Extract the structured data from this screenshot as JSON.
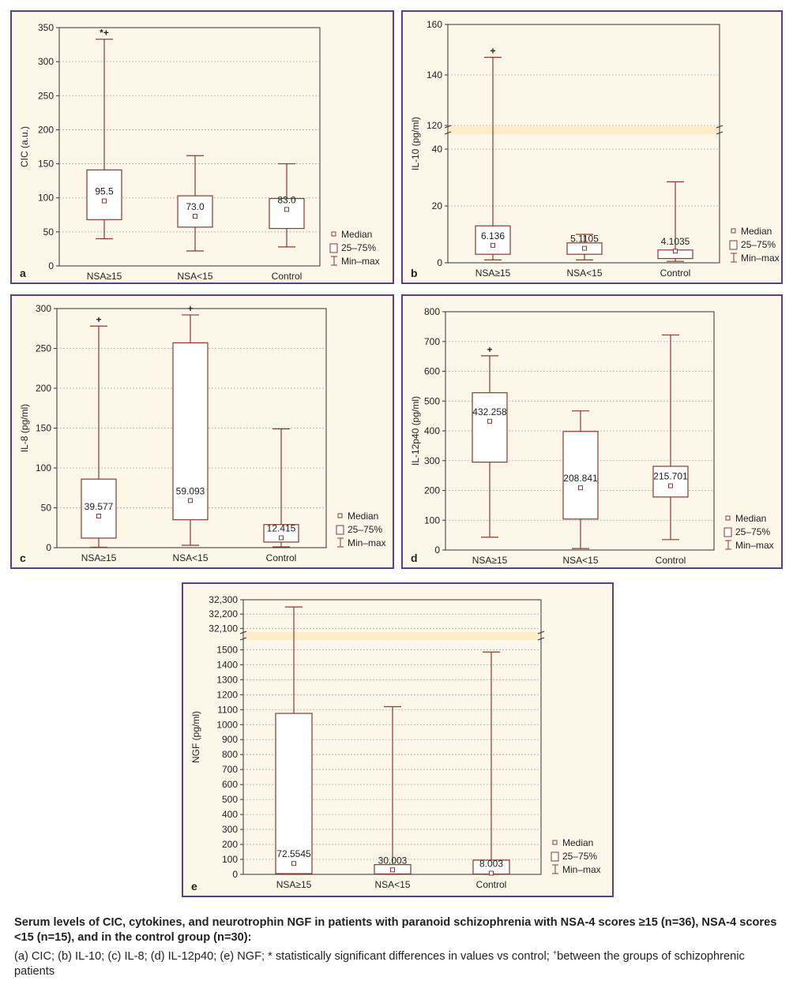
{
  "colors": {
    "frame": "#5b3f8c",
    "panel_bg": "#fdf7ea",
    "box": "#8b3a2c",
    "grid": "#a8a8a8"
  },
  "legend": {
    "median": "Median",
    "iqr": "25–75%",
    "range": "Min–max"
  },
  "chart_data": [
    {
      "id": "a",
      "type": "box",
      "panel_label": "a",
      "ylabel": "CIC (a.u.)",
      "categories": [
        "NSA≥15",
        "NSA<15",
        "Control"
      ],
      "yticks": [
        0,
        50,
        100,
        150,
        200,
        250,
        300,
        350
      ],
      "ylim": [
        0,
        350
      ],
      "grid": true,
      "boxes": [
        {
          "min": 40,
          "q1": 68,
          "median": 95.5,
          "q3": 141,
          "max": 333,
          "label": "95.5",
          "mark": "*+"
        },
        {
          "min": 22,
          "q1": 57,
          "median": 73.0,
          "q3": 103,
          "max": 162,
          "label": "73.0"
        },
        {
          "min": 28,
          "q1": 55,
          "median": 83.0,
          "q3": 99,
          "max": 150,
          "label": "83.0"
        }
      ]
    },
    {
      "id": "b",
      "type": "box",
      "panel_label": "b",
      "ylabel": "IL-10 (pg/ml)",
      "categories": [
        "NSA≥15",
        "NSA<15",
        "Control"
      ],
      "ylim": [
        0,
        160
      ],
      "grid": true,
      "axis_break": {
        "lower": [
          0,
          45
        ],
        "upper": [
          120,
          160
        ]
      },
      "yticks": [
        0,
        20,
        40,
        120,
        140,
        160
      ],
      "boxes": [
        {
          "min": 1,
          "q1": 3,
          "median": 6.136,
          "q3": 13,
          "max": 147,
          "label": "6.136",
          "mark": "+"
        },
        {
          "min": 1,
          "q1": 3,
          "median": 5.1105,
          "q3": 7,
          "max": 10,
          "label": "5.1105"
        },
        {
          "min": 0.5,
          "q1": 1.5,
          "median": 4.1035,
          "q3": 4.5,
          "max": 28.5,
          "label": "4.1035"
        }
      ]
    },
    {
      "id": "c",
      "type": "box",
      "panel_label": "c",
      "ylabel": "IL-8 (pg/ml)",
      "categories": [
        "NSA≥15",
        "NSA<15",
        "Control"
      ],
      "yticks": [
        0,
        50,
        100,
        150,
        200,
        250,
        300
      ],
      "ylim": [
        0,
        300
      ],
      "grid": true,
      "boxes": [
        {
          "min": 0.5,
          "q1": 12,
          "median": 39.577,
          "q3": 86,
          "max": 278,
          "label": "39.577",
          "mark": "+"
        },
        {
          "min": 3,
          "q1": 35,
          "median": 59.093,
          "q3": 257,
          "max": 292,
          "label": "59.093",
          "mark": "+"
        },
        {
          "min": 1,
          "q1": 7,
          "median": 12.415,
          "q3": 29,
          "max": 149,
          "label": "12.415"
        }
      ]
    },
    {
      "id": "d",
      "type": "box",
      "panel_label": "d",
      "ylabel": "IL-12p40 (pg/ml)",
      "categories": [
        "NSA≥15",
        "NSA<15",
        "Control"
      ],
      "yticks": [
        0,
        100,
        200,
        300,
        400,
        500,
        600,
        700,
        800
      ],
      "ylim": [
        0,
        800
      ],
      "grid": true,
      "boxes": [
        {
          "min": 43,
          "q1": 295,
          "median": 432.258,
          "q3": 528,
          "max": 652,
          "label": "432.258",
          "mark": "+"
        },
        {
          "min": 5,
          "q1": 104,
          "median": 208.841,
          "q3": 398,
          "max": 467,
          "label": "208.841"
        },
        {
          "min": 35,
          "q1": 178,
          "median": 215.701,
          "q3": 281,
          "max": 722,
          "label": "215.701"
        }
      ]
    },
    {
      "id": "e",
      "type": "box",
      "panel_label": "e",
      "ylabel": "NGF (pg/ml)",
      "categories": [
        "NSA≥15",
        "NSA<15",
        "Control"
      ],
      "ylim": [
        0,
        32300
      ],
      "grid": true,
      "axis_break": {
        "lower": [
          0,
          1560
        ],
        "upper": [
          32080,
          32300
        ]
      },
      "yticks": [
        0,
        100,
        200,
        300,
        400,
        500,
        600,
        700,
        800,
        900,
        1000,
        1100,
        1200,
        1300,
        1400,
        1500,
        32100,
        32200,
        32300
      ],
      "ytick_labels": [
        "0",
        "100",
        "200",
        "300",
        "400",
        "500",
        "600",
        "700",
        "800",
        "900",
        "1000",
        "1100",
        "1200",
        "1300",
        "1400",
        "1500",
        "32,100",
        "32,200",
        "32,300"
      ],
      "boxes": [
        {
          "min": 0,
          "q1": 5,
          "median": 72.5545,
          "q3": 1075,
          "max": 32250,
          "label": "72.5545"
        },
        {
          "min": 0,
          "q1": 3,
          "median": 30.003,
          "q3": 65,
          "max": 1120,
          "label": "30.003"
        },
        {
          "min": 0,
          "q1": 2,
          "median": 8.003,
          "q3": 95,
          "max": 1485,
          "label": "8.003"
        }
      ]
    }
  ],
  "caption": {
    "title": "Serum levels of CIC, cytokines, and neurotrophin NGF in patients with paranoid schizophrenia with NSA-4 scores ≥15 (n=36), NSA-4 scores <15 (n=15), and in the control group (n=30):",
    "body": "(a) CIC; (b) IL-10; (c) IL-8; (d) IL-12p40; (e) NGF; * statistically significant differences in values vs control; ",
    "plus": "+",
    "tail": "between the groups of schizophrenic patients"
  }
}
